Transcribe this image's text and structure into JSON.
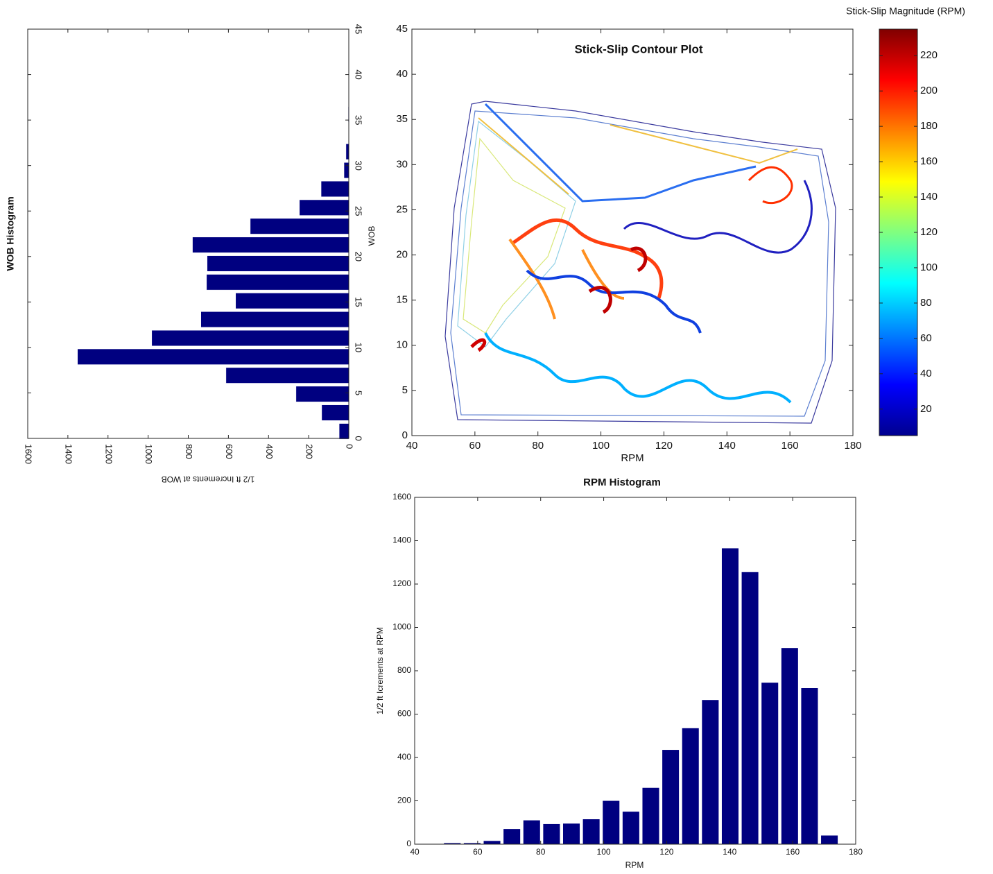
{
  "chart_data": [
    {
      "type": "histogram",
      "orientation": "horizontal",
      "title": "WOB Histogram",
      "xlabel": "1/2 ft Increments at WOB",
      "ylabel": "WOB",
      "bins": [
        -0.25,
        1.8,
        3.85,
        5.9,
        7.95,
        10,
        12.05,
        14.1,
        16.15,
        18.2,
        20.25,
        22.3,
        24.35,
        26.4,
        28.45,
        30.5,
        32.55,
        34.6,
        36.65
      ],
      "values": [
        48,
        135,
        263,
        612,
        1352,
        982,
        737,
        564,
        709,
        706,
        779,
        491,
        246,
        138,
        24,
        14,
        0,
        3
      ],
      "color": "#000080",
      "x_reversed": true,
      "xlim": [
        0,
        1600
      ],
      "xticks": [
        0,
        200,
        400,
        600,
        800,
        1000,
        1200,
        1400,
        1600
      ],
      "ylim": [
        0,
        45
      ],
      "yticks": [
        0,
        5,
        10,
        15,
        20,
        25,
        30,
        35,
        40,
        45
      ]
    },
    {
      "type": "contour",
      "title": "Stick-Slip Contour Plot",
      "xlabel": "RPM",
      "xlim": [
        40,
        180
      ],
      "xticks": [
        40,
        60,
        80,
        100,
        120,
        140,
        160,
        180
      ],
      "ylim": [
        0,
        45
      ],
      "yticks": [
        0,
        5,
        10,
        15,
        20,
        25,
        30,
        35,
        40,
        45
      ],
      "colorbar": {
        "label": "Stick-Slip Magnitude (RPM)",
        "lim": [
          5,
          235
        ],
        "ticks": [
          20,
          40,
          60,
          80,
          100,
          120,
          140,
          160,
          180,
          200,
          220
        ],
        "colors": [
          "#00008f",
          "#0000ff",
          "#0080ff",
          "#00ffff",
          "#80ff80",
          "#ffff00",
          "#ff8000",
          "#ff0000",
          "#800000"
        ]
      }
    },
    {
      "type": "histogram",
      "orientation": "vertical",
      "title": "RPM Histogram",
      "xlabel": "RPM",
      "ylabel": "1/2 ft Icrements at RPM",
      "bins": [
        48.8,
        55.1,
        61.4,
        67.7,
        74,
        80.3,
        86.6,
        92.9,
        99.2,
        105.5,
        111.8,
        118.1,
        124.4,
        130.7,
        137,
        143.3,
        149.6,
        155.9,
        162.2,
        168.5,
        174.8
      ],
      "values": [
        5,
        5,
        15,
        70,
        110,
        93,
        95,
        115,
        200,
        150,
        260,
        435,
        535,
        665,
        1365,
        1255,
        745,
        905,
        720,
        40
      ],
      "color": "#000080",
      "xlim": [
        40,
        180
      ],
      "xticks": [
        40,
        60,
        80,
        100,
        120,
        140,
        160,
        180
      ],
      "ylim": [
        0,
        1600
      ],
      "yticks": [
        0,
        200,
        400,
        600,
        800,
        1000,
        1200,
        1400,
        1600
      ]
    }
  ]
}
